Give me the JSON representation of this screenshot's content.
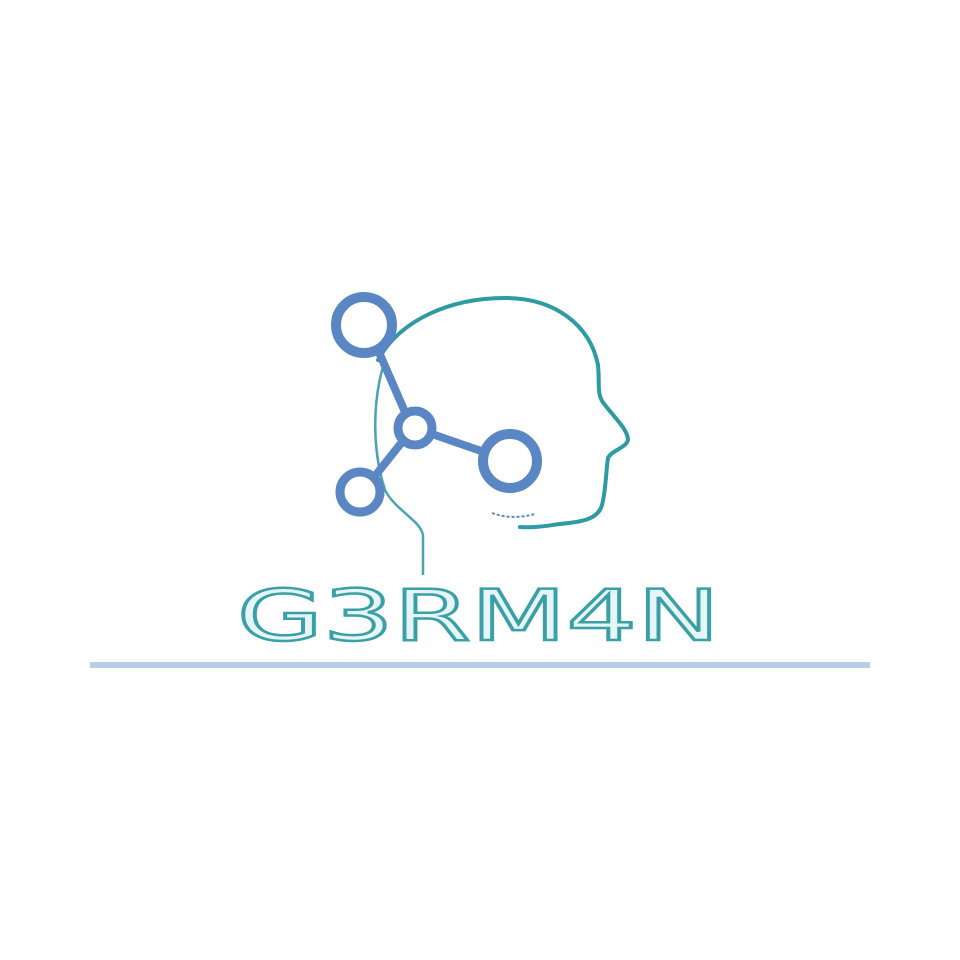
{
  "logo": {
    "text": "G3RM4N"
  }
}
